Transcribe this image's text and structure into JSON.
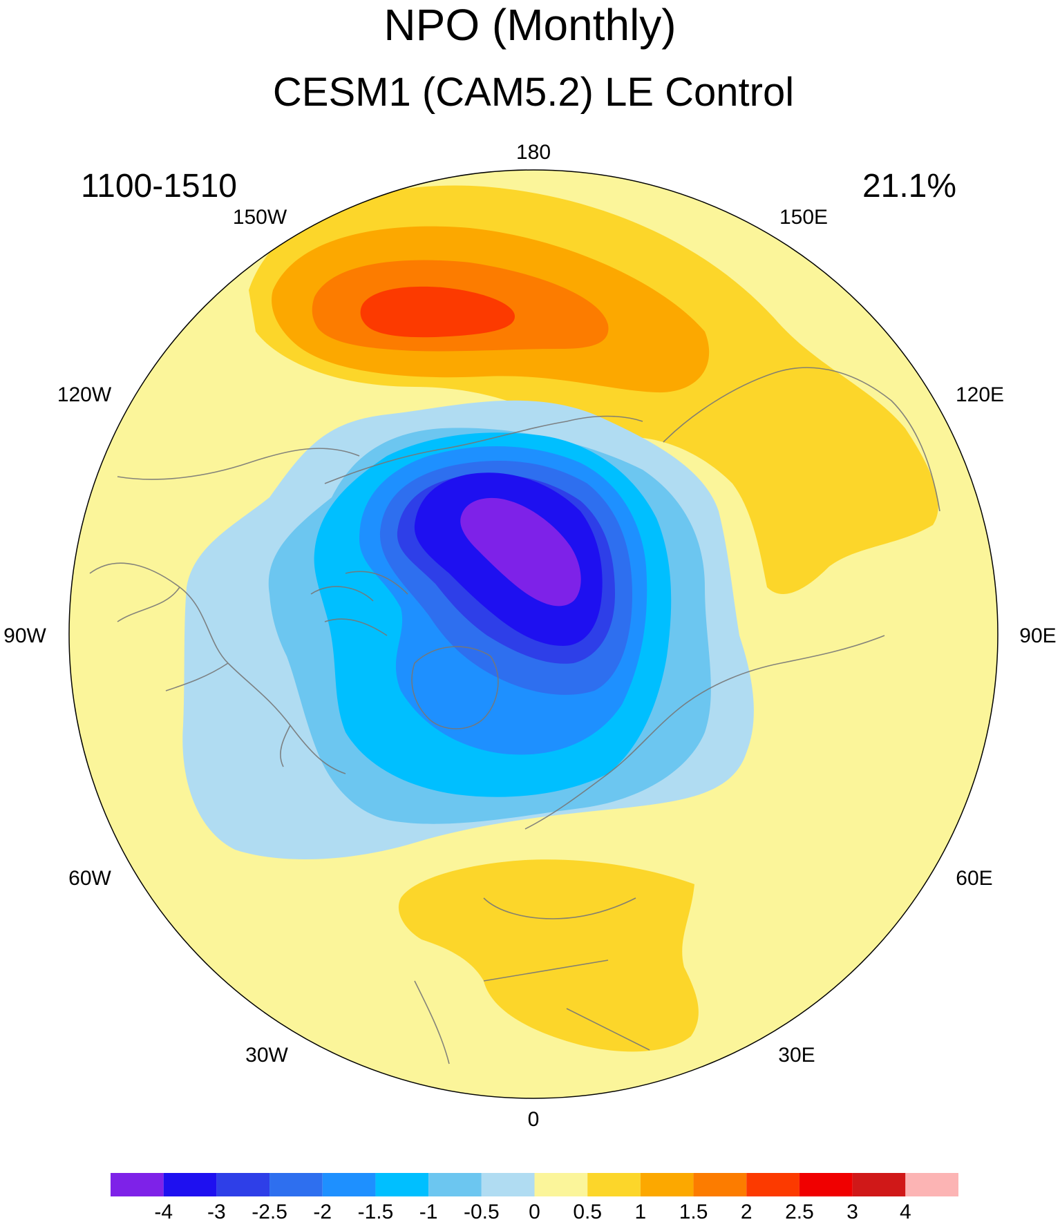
{
  "title": "NPO (Monthly)",
  "subtitle": "CESM1 (CAM5.2) LE Control",
  "years_label": "1100-1510",
  "variance_label": "21.1%",
  "projection": "north-polar-stereographic",
  "longitude_labels": {
    "top": "180",
    "upper_left": "150W",
    "upper_right": "150E",
    "left_upper": "120W",
    "right_upper": "120E",
    "left": "90W",
    "right": "90E",
    "left_lower": "60W",
    "right_lower": "60E",
    "lower_left": "30W",
    "lower_right": "30E",
    "bottom": "0"
  },
  "colors": {
    "background_field": "#fbf59a",
    "coast": "#777777",
    "contour": {
      "n4": "#7e22e8",
      "n3": "#1e10f0",
      "n2_5": "#2e3fe8",
      "n2": "#2e6fef",
      "n1_5": "#1e90ff",
      "n1": "#00bfff",
      "n0_5": "#6cc6f0",
      "n0": "#b0dcf2",
      "p0": "#fbf59a",
      "p0_5": "#fcd62a",
      "p1": "#fca800",
      "p1_5": "#fc7c00",
      "p2": "#fc3a00",
      "p2_5": "#f00000",
      "p3": "#d01818",
      "p4": "#fcb4b4"
    }
  },
  "colorbar": {
    "boxes": [
      "#7e22e8",
      "#1e10f0",
      "#2e3fe8",
      "#2e6fef",
      "#1e90ff",
      "#00bfff",
      "#6cc6f0",
      "#b0dcf2",
      "#fbf59a",
      "#fcd62a",
      "#fca800",
      "#fc7c00",
      "#fc3a00",
      "#f00000",
      "#d01818",
      "#fcb4b4"
    ],
    "labels": [
      "-4",
      "-3",
      "-2.5",
      "-2",
      "-1.5",
      "-1",
      "-0.5",
      "0",
      "0.5",
      "1",
      "1.5",
      "2",
      "2.5",
      "3",
      "4"
    ]
  }
}
